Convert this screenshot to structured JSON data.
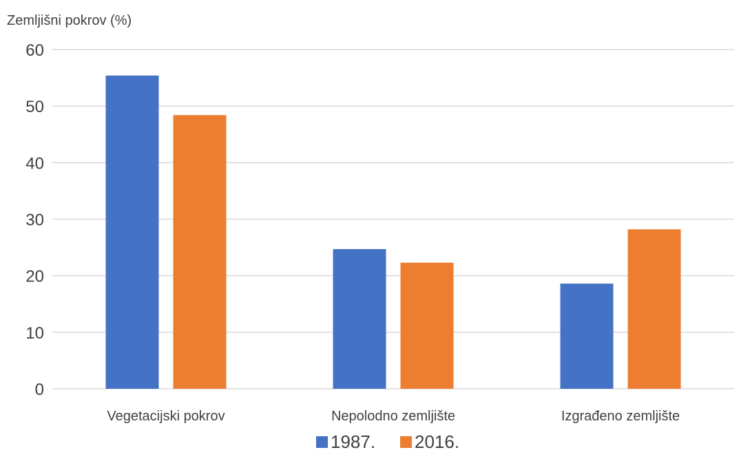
{
  "chart_data": {
    "type": "bar",
    "title": "",
    "ylabel": "Zemljišni pokrov (%)",
    "xlabel": "",
    "ylim": [
      0,
      60
    ],
    "yticks": [
      0,
      10,
      20,
      30,
      40,
      50,
      60
    ],
    "grid": true,
    "legend_position": "bottom",
    "categories": [
      "Vegetacijski pokrov",
      "Nepolodno zemljište",
      "Izgrađeno zemljište"
    ],
    "series": [
      {
        "name": "1987.",
        "color": "#4472c4",
        "values": [
          55.4,
          24.7,
          18.6
        ]
      },
      {
        "name": "2016.",
        "color": "#ed7d31",
        "values": [
          48.4,
          22.3,
          28.2
        ]
      }
    ]
  }
}
